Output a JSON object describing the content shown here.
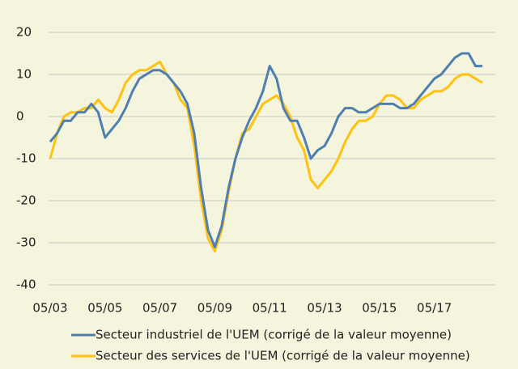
{
  "chart_data": {
    "type": "line",
    "x": [
      "2003-05",
      "2003-08",
      "2003-11",
      "2004-02",
      "2004-05",
      "2004-08",
      "2004-11",
      "2005-02",
      "2005-05",
      "2005-08",
      "2005-11",
      "2006-02",
      "2006-05",
      "2006-08",
      "2006-11",
      "2007-02",
      "2007-05",
      "2007-08",
      "2007-11",
      "2008-02",
      "2008-05",
      "2008-08",
      "2008-11",
      "2009-02",
      "2009-05",
      "2009-08",
      "2009-11",
      "2010-02",
      "2010-05",
      "2010-08",
      "2010-11",
      "2011-02",
      "2011-05",
      "2011-08",
      "2011-11",
      "2012-02",
      "2012-05",
      "2012-08",
      "2012-11",
      "2013-02",
      "2013-05",
      "2013-08",
      "2013-11",
      "2014-02",
      "2014-05",
      "2014-08",
      "2014-11",
      "2015-02",
      "2015-05",
      "2015-08",
      "2015-11",
      "2016-02",
      "2016-05",
      "2016-08",
      "2016-11",
      "2017-02",
      "2017-05",
      "2017-08",
      "2017-11",
      "2018-02",
      "2018-05",
      "2018-08",
      "2018-11",
      "2019-02"
    ],
    "series": [
      {
        "name": "Secteur industriel de l'UEM (corrigé de la valeur moyenne)",
        "color": "#4f7fb0",
        "values": [
          -6,
          -4,
          -1,
          -1,
          1,
          1,
          3,
          1,
          -5,
          -3,
          -1,
          2,
          6,
          9,
          10,
          11,
          11,
          10,
          8,
          6,
          3,
          -4,
          -17,
          -27,
          -31,
          -26,
          -17,
          -10,
          -5,
          -1,
          2,
          6,
          12,
          9,
          2,
          -1,
          -1,
          -5,
          -10,
          -8,
          -7,
          -4,
          0,
          2,
          2,
          1,
          1,
          2,
          3,
          3,
          3,
          2,
          2,
          3,
          5,
          7,
          9,
          10,
          12,
          14,
          15,
          15,
          12,
          12
        ]
      },
      {
        "name": "Secteur des services de l'UEM (corrigé de la valeur moyenne)",
        "color": "#ffc20e",
        "values": [
          -10,
          -4,
          0,
          1,
          1,
          2,
          2,
          4,
          2,
          1,
          4,
          8,
          10,
          11,
          11,
          12,
          13,
          10,
          8,
          4,
          2,
          -7,
          -20,
          -29,
          -32,
          -27,
          -18,
          -10,
          -4,
          -3,
          0,
          3,
          4,
          5,
          3,
          0,
          -5,
          -8,
          -15,
          -17,
          -15,
          -13,
          -10,
          -6,
          -3,
          -1,
          -1,
          0,
          3,
          5,
          5,
          4,
          2,
          2,
          4,
          5,
          6,
          6,
          7,
          9,
          10,
          10,
          9,
          8
        ]
      }
    ],
    "xlim": [
      "2003-05",
      "2019-02"
    ],
    "xticks": [
      {
        "value": "2003-05",
        "label": "05/03"
      },
      {
        "value": "2005-05",
        "label": "05/05"
      },
      {
        "value": "2007-05",
        "label": "05/07"
      },
      {
        "value": "2009-05",
        "label": "05/09"
      },
      {
        "value": "2011-05",
        "label": "05/11"
      },
      {
        "value": "2013-05",
        "label": "05/13"
      },
      {
        "value": "2015-05",
        "label": "05/15"
      },
      {
        "value": "2017-05",
        "label": "05/17"
      }
    ],
    "ylim": [
      -40,
      20
    ],
    "yticks": [
      -40,
      -30,
      -20,
      -10,
      0,
      10,
      20
    ],
    "grid": true
  }
}
